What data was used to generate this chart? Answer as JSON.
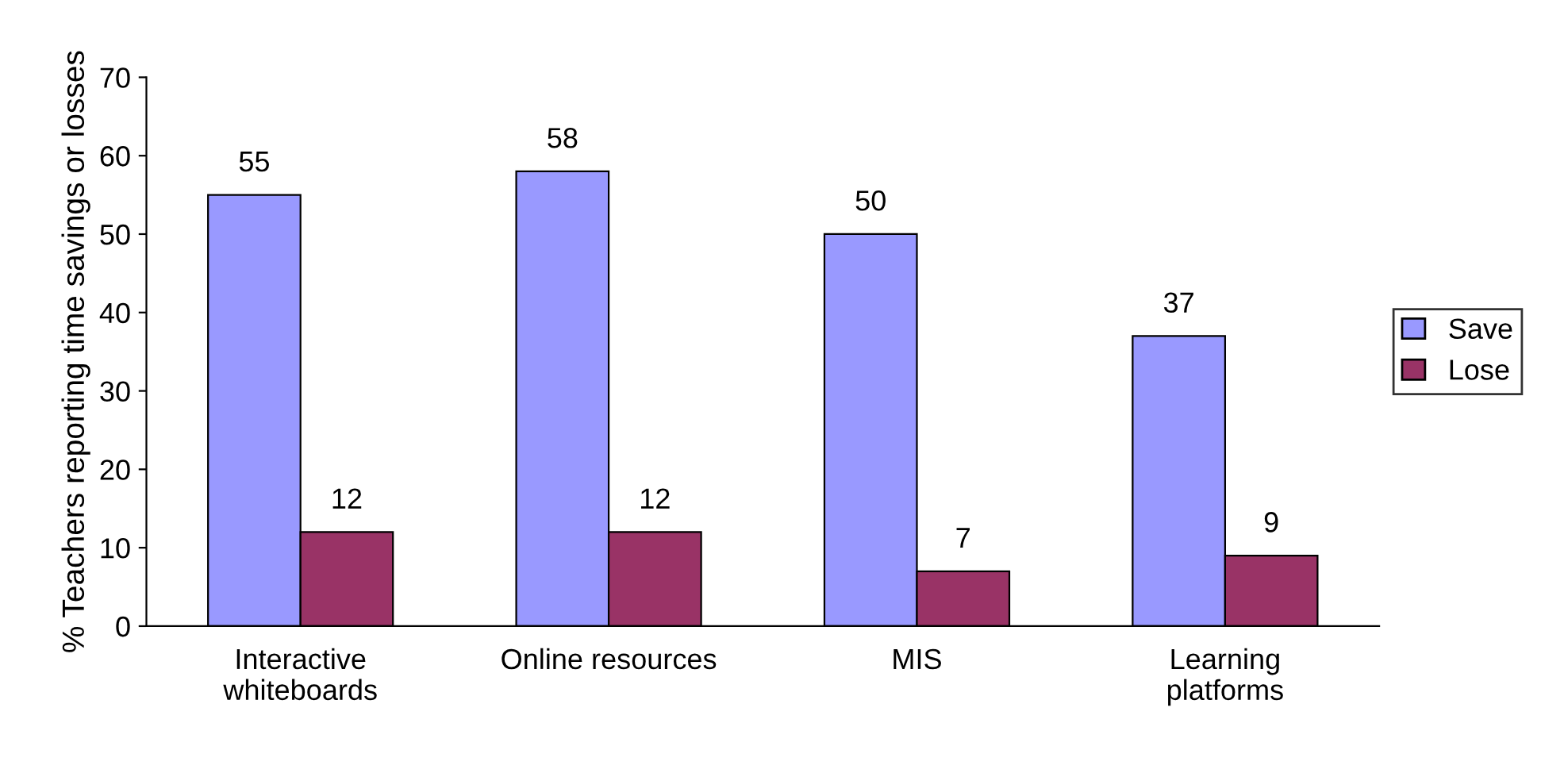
{
  "chart_data": {
    "type": "bar",
    "ylabel": "% Teachers reporting time savings or losses",
    "categories": [
      "Interactive\nwhiteboards",
      "Online resources",
      "MIS",
      "Learning\nplatforms"
    ],
    "series": [
      {
        "name": "Save",
        "color": "#9999ff",
        "values": [
          55,
          58,
          50,
          37
        ]
      },
      {
        "name": "Lose",
        "color": "#993366",
        "values": [
          12,
          12,
          7,
          9
        ]
      }
    ],
    "ylim": [
      0,
      70
    ],
    "yticks": [
      0,
      10,
      20,
      30,
      40,
      50,
      60,
      70
    ],
    "data_labels": true,
    "legend": "right",
    "grid": false
  }
}
